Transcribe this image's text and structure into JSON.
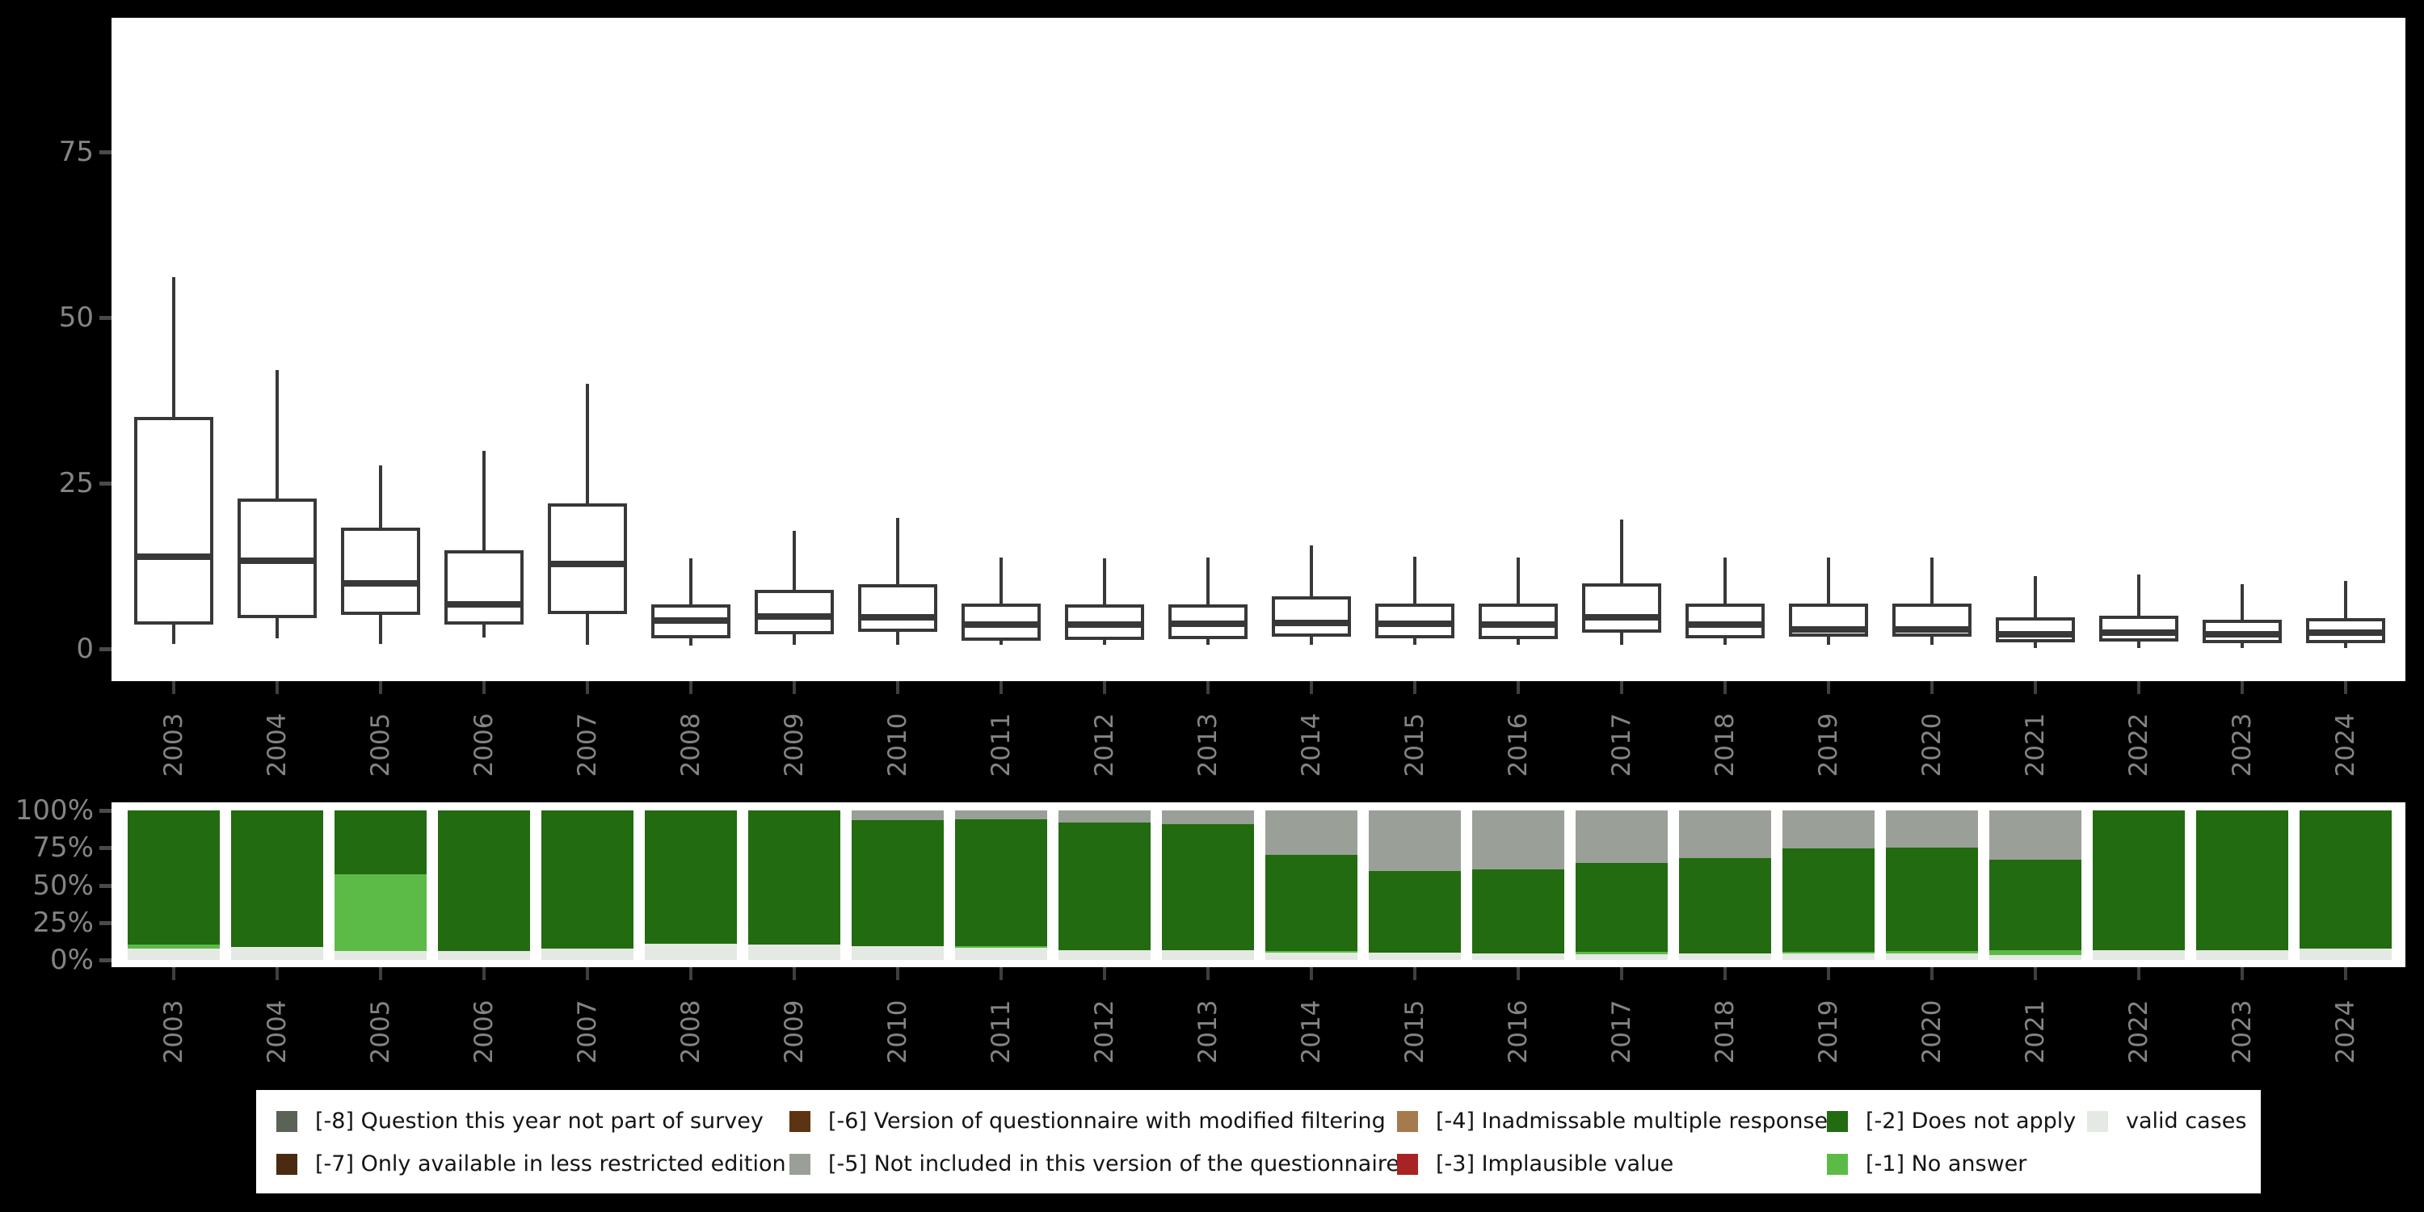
{
  "figure": {
    "background": "#000000",
    "panel_background": "#ffffff"
  },
  "chart_data": [
    {
      "type": "boxplot",
      "title": "",
      "xlabel": "",
      "ylabel": "",
      "categories": [
        "2003",
        "2004",
        "2005",
        "2006",
        "2007",
        "2008",
        "2009",
        "2010",
        "2011",
        "2012",
        "2013",
        "2014",
        "2015",
        "2016",
        "2017",
        "2018",
        "2019",
        "2020",
        "2021",
        "2022",
        "2023",
        "2024"
      ],
      "ytick_labels": [
        "0",
        "25",
        "50",
        "75"
      ],
      "yticks": [
        0,
        25,
        50,
        75
      ],
      "ylim": [
        -5,
        95
      ],
      "grid": false,
      "box_color": "#383838",
      "series": [
        {
          "year": "2003",
          "min": 0.7,
          "q1": 3.7,
          "median": 13.9,
          "q3": 35.0,
          "max": 56.1
        },
        {
          "year": "2004",
          "min": 1.6,
          "q1": 4.6,
          "median": 13.3,
          "q3": 22.7,
          "max": 42.1
        },
        {
          "year": "2005",
          "min": 0.7,
          "q1": 5.1,
          "median": 9.9,
          "q3": 18.3,
          "max": 27.7
        },
        {
          "year": "2006",
          "min": 1.7,
          "q1": 3.7,
          "median": 6.7,
          "q3": 14.9,
          "max": 29.9
        },
        {
          "year": "2007",
          "min": 0.6,
          "q1": 5.2,
          "median": 12.8,
          "q3": 22.0,
          "max": 40.0
        },
        {
          "year": "2008",
          "min": 0.5,
          "q1": 1.6,
          "median": 4.3,
          "q3": 6.7,
          "max": 13.7
        },
        {
          "year": "2009",
          "min": 0.6,
          "q1": 2.2,
          "median": 4.9,
          "q3": 8.9,
          "max": 17.8
        },
        {
          "year": "2010",
          "min": 0.6,
          "q1": 2.6,
          "median": 4.8,
          "q3": 9.8,
          "max": 19.8
        },
        {
          "year": "2011",
          "min": 0.6,
          "q1": 1.2,
          "median": 3.7,
          "q3": 6.8,
          "max": 13.8
        },
        {
          "year": "2012",
          "min": 0.6,
          "q1": 1.3,
          "median": 3.7,
          "q3": 6.7,
          "max": 13.7
        },
        {
          "year": "2013",
          "min": 0.6,
          "q1": 1.5,
          "median": 3.8,
          "q3": 6.7,
          "max": 13.8
        },
        {
          "year": "2014",
          "min": 0.6,
          "q1": 1.8,
          "median": 3.9,
          "q3": 7.9,
          "max": 15.6
        },
        {
          "year": "2015",
          "min": 0.6,
          "q1": 1.6,
          "median": 3.8,
          "q3": 6.8,
          "max": 13.9
        },
        {
          "year": "2016",
          "min": 0.6,
          "q1": 1.5,
          "median": 3.7,
          "q3": 6.8,
          "max": 13.8
        },
        {
          "year": "2017",
          "min": 0.6,
          "q1": 2.4,
          "median": 4.8,
          "q3": 9.9,
          "max": 19.5
        },
        {
          "year": "2018",
          "min": 0.6,
          "q1": 1.6,
          "median": 3.7,
          "q3": 6.8,
          "max": 13.8
        },
        {
          "year": "2019",
          "min": 0.6,
          "q1": 1.8,
          "median": 2.9,
          "q3": 6.8,
          "max": 13.8
        },
        {
          "year": "2020",
          "min": 0.6,
          "q1": 1.8,
          "median": 2.9,
          "q3": 6.8,
          "max": 13.8
        },
        {
          "year": "2021",
          "min": 0.1,
          "q1": 1.0,
          "median": 2.2,
          "q3": 4.8,
          "max": 11.0
        },
        {
          "year": "2022",
          "min": 0.1,
          "q1": 1.1,
          "median": 2.4,
          "q3": 5.0,
          "max": 11.2
        },
        {
          "year": "2023",
          "min": 0.1,
          "q1": 0.8,
          "median": 2.2,
          "q3": 4.4,
          "max": 9.8
        },
        {
          "year": "2024",
          "min": 0.1,
          "q1": 0.9,
          "median": 2.4,
          "q3": 4.6,
          "max": 10.3
        }
      ]
    },
    {
      "type": "bar",
      "stacked": true,
      "unit": "percent",
      "title": "",
      "categories": [
        "2003",
        "2004",
        "2005",
        "2006",
        "2007",
        "2008",
        "2009",
        "2010",
        "2011",
        "2012",
        "2013",
        "2014",
        "2015",
        "2016",
        "2017",
        "2018",
        "2019",
        "2020",
        "2021",
        "2022",
        "2023",
        "2024"
      ],
      "ytick_labels": [
        "0%",
        "25%",
        "50%",
        "75%",
        "100%"
      ],
      "yticks": [
        0,
        25,
        50,
        75,
        100
      ],
      "ylim": [
        0,
        100
      ],
      "grid": false,
      "legend_position": "bottom",
      "series": [
        {
          "name": "[-5] Not included in this version of the questionnaire",
          "color": "#9aa098",
          "values": [
            0,
            0,
            0,
            0,
            0,
            0,
            0,
            6.4,
            6.0,
            8.0,
            9.0,
            29.7,
            40.5,
            39.5,
            35.1,
            31.9,
            25.4,
            24.6,
            33.2,
            0,
            0,
            0
          ]
        },
        {
          "name": "[-2] Does not apply",
          "color": "#226b10",
          "values": [
            89.5,
            91.5,
            42.7,
            94.1,
            92.5,
            89.3,
            89.5,
            84.6,
            85.0,
            85.5,
            84.5,
            64.5,
            54.6,
            56.2,
            59.7,
            63.6,
            69.3,
            69.4,
            60.3,
            93.5,
            93.5,
            92.5
          ]
        },
        {
          "name": "[-1] No answer",
          "color": "#5cbb46",
          "values": [
            2.8,
            0,
            51.4,
            0,
            0,
            0,
            0,
            0,
            0.8,
            0,
            0,
            1.2,
            0,
            0,
            1.4,
            0,
            0.8,
            1.5,
            3.0,
            0,
            0,
            0
          ]
        },
        {
          "name": "valid cases",
          "color": "#e5e9e3",
          "values": [
            7.7,
            8.5,
            5.9,
            5.9,
            7.5,
            10.7,
            10.5,
            9.0,
            8.2,
            6.5,
            6.5,
            4.6,
            4.9,
            4.3,
            3.8,
            4.5,
            4.5,
            4.5,
            3.5,
            6.5,
            6.5,
            7.5
          ]
        }
      ]
    }
  ],
  "legend": {
    "items": [
      {
        "key": "-8",
        "label": "[-8] Question this year not part of survey",
        "color": "#5b6357"
      },
      {
        "key": "-7",
        "label": "[-7] Only available in less restricted edition",
        "color": "#4a2b11"
      },
      {
        "key": "-6",
        "label": "[-6] Version of questionnaire with modified filtering",
        "color": "#5d3411"
      },
      {
        "key": "-5",
        "label": "[-5] Not included in this version of the questionnaire",
        "color": "#9aa098"
      },
      {
        "key": "-4",
        "label": "[-4] Inadmissable multiple response",
        "color": "#a57b4e"
      },
      {
        "key": "-3",
        "label": "[-3] Implausible value",
        "color": "#a82424"
      },
      {
        "key": "-2",
        "label": "[-2] Does not apply",
        "color": "#226b10"
      },
      {
        "key": "-1",
        "label": "[-1] No answer",
        "color": "#5cbb46"
      },
      {
        "key": "valid",
        "label": "valid cases",
        "color": "#e5e9e3"
      }
    ]
  }
}
